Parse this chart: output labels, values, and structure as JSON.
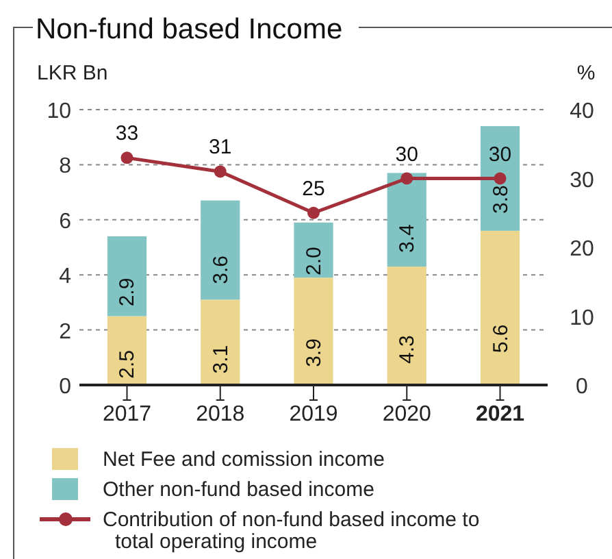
{
  "chart_data": {
    "type": "bar",
    "title": "Non-fund based Income",
    "ylabel": "LKR Bn",
    "y2label": "%",
    "categories": [
      "2017",
      "2018",
      "2019",
      "2020",
      "2021"
    ],
    "series": [
      {
        "name": "Net Fee and comission income",
        "color": "#ecd68d",
        "values": [
          2.5,
          3.1,
          3.9,
          4.3,
          5.6
        ],
        "value_labels": [
          "2.5",
          "3.1",
          "3.9",
          "4.3",
          "5.6"
        ]
      },
      {
        "name": "Other non-fund based income",
        "color": "#82c3c4",
        "values": [
          2.9,
          3.6,
          2.0,
          3.4,
          3.8
        ],
        "value_labels": [
          "2.9",
          "3.6",
          "2.0",
          "3.4",
          "3.8"
        ]
      },
      {
        "name": "Contribution of non-fund based income to total operating income",
        "type": "line",
        "axis": "y2",
        "color": "#a3303a",
        "values": [
          33,
          31,
          25,
          30,
          30
        ],
        "value_labels": [
          "33",
          "31",
          "25",
          "30",
          "30"
        ]
      }
    ],
    "stacked": true,
    "ylim": [
      0,
      10
    ],
    "yticks": [
      0,
      2,
      4,
      6,
      8,
      10
    ],
    "y2lim": [
      0,
      40
    ],
    "y2ticks": [
      0,
      10,
      20,
      30,
      40
    ],
    "grid": "y",
    "legend": "bottom",
    "marker": "circle",
    "line_style": "solid"
  }
}
